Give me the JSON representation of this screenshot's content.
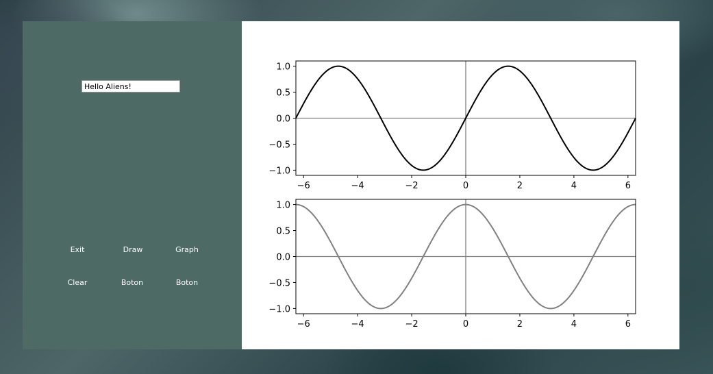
{
  "form": {
    "text_input_value": "Hello Aliens!",
    "buttons": {
      "exit": "Exit",
      "draw": "Draw",
      "graph": "Graph",
      "clear": "Clear",
      "boton_1": "Boton",
      "boton_2": "Boton"
    }
  },
  "chart_data": [
    {
      "type": "line",
      "function": "sin(x)",
      "xlim": [
        -6.283,
        6.283
      ],
      "ylim": [
        -1.1,
        1.1
      ],
      "xticks": [
        -6,
        -4,
        -2,
        0,
        2,
        4,
        6
      ],
      "yticks": [
        1.0,
        0.5,
        0.0,
        -0.5,
        -1.0
      ],
      "xtick_labels": [
        "−6",
        "−4",
        "−2",
        "0",
        "2",
        "4",
        "6"
      ],
      "ytick_labels": [
        "1.0",
        "0.5",
        "0.0",
        "−0.5",
        "−1.0"
      ],
      "axes_lines": true,
      "color": "#000000",
      "x": [
        -6.283,
        -5.498,
        -4.712,
        -3.927,
        -3.142,
        -2.356,
        -1.571,
        -0.785,
        0,
        0.785,
        1.571,
        2.356,
        3.142,
        3.927,
        4.712,
        5.498,
        6.283
      ],
      "y": [
        0,
        0.707,
        1,
        0.707,
        0,
        -0.707,
        -1,
        -0.707,
        0,
        0.707,
        1,
        0.707,
        0,
        -0.707,
        -1,
        -0.707,
        0
      ]
    },
    {
      "type": "line",
      "function": "cos(x)",
      "xlim": [
        -6.283,
        6.283
      ],
      "ylim": [
        -1.1,
        1.1
      ],
      "xticks": [
        -6,
        -4,
        -2,
        0,
        2,
        4,
        6
      ],
      "yticks": [
        1.0,
        0.5,
        0.0,
        -0.5,
        -1.0
      ],
      "xtick_labels": [
        "−6",
        "−4",
        "−2",
        "0",
        "2",
        "4",
        "6"
      ],
      "ytick_labels": [
        "1.0",
        "0.5",
        "0.0",
        "−0.5",
        "−1.0"
      ],
      "axes_lines": true,
      "color": "#808080",
      "x": [
        -6.283,
        -5.498,
        -4.712,
        -3.927,
        -3.142,
        -2.356,
        -1.571,
        -0.785,
        0,
        0.785,
        1.571,
        2.356,
        3.142,
        3.927,
        4.712,
        5.498,
        6.283
      ],
      "y": [
        1,
        0.707,
        0,
        -0.707,
        -1,
        -0.707,
        0,
        0.707,
        1,
        0.707,
        0,
        -0.707,
        -1,
        -0.707,
        0,
        0.707,
        1
      ]
    }
  ]
}
